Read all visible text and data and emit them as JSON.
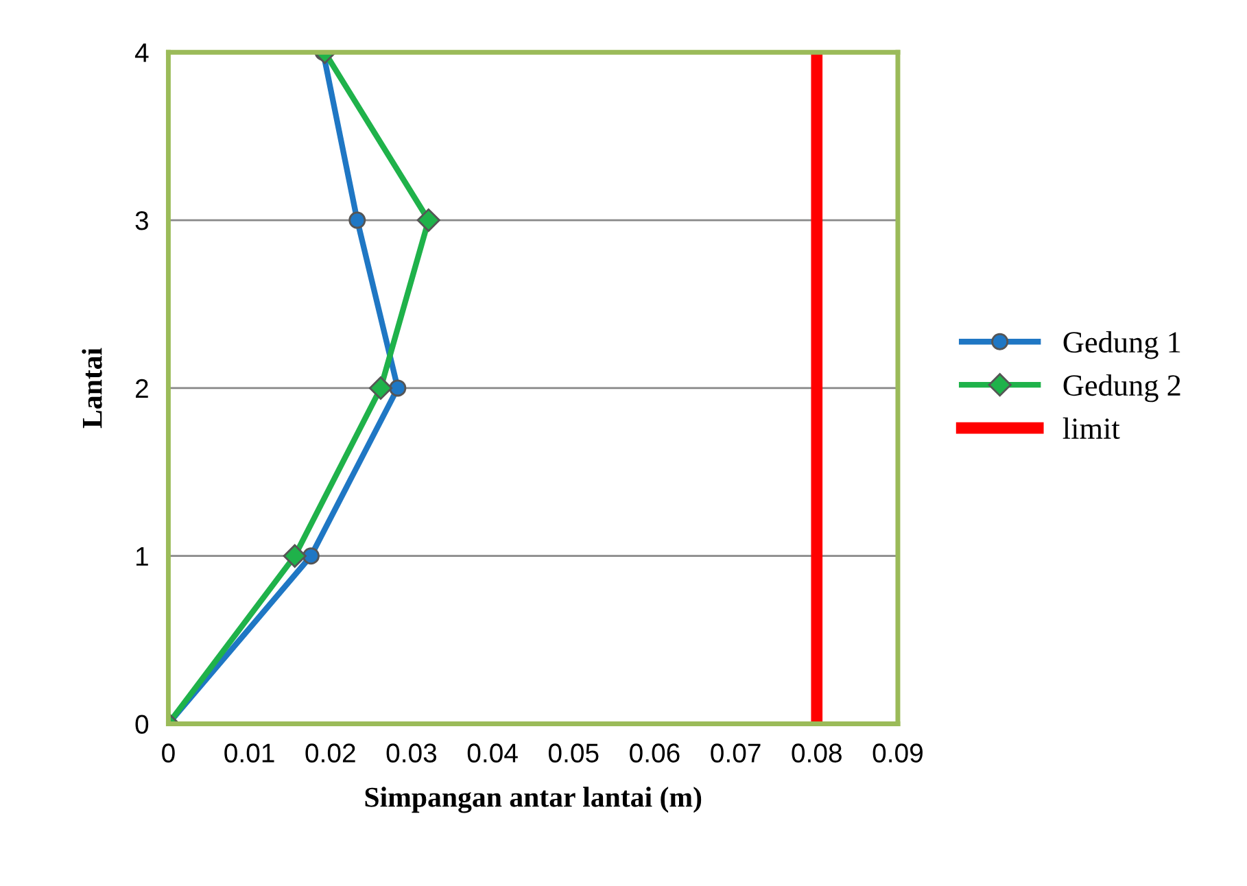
{
  "chart_data": {
    "type": "line",
    "xlabel": "Simpangan antar lantai (m)",
    "ylabel": "Lantai",
    "xlim": [
      0,
      0.09
    ],
    "xticks": [
      0,
      0.01,
      0.02,
      0.03,
      0.04,
      0.05,
      0.06,
      0.07,
      0.08,
      0.09
    ],
    "ylim": [
      0,
      4
    ],
    "yticks": [
      0,
      1,
      2,
      3,
      4
    ],
    "grid": "y",
    "legend": "right",
    "series": [
      {
        "name": "Gedung 1",
        "color": "#1f77c4",
        "marker": "circle",
        "x": [
          0,
          0.0176,
          0.0283,
          0.0233,
          0.0191
        ],
        "values": [
          0,
          1,
          2,
          3,
          4
        ]
      },
      {
        "name": "Gedung 2",
        "color": "#1fb24a",
        "marker": "diamond",
        "x": [
          0,
          0.0156,
          0.0262,
          0.0321,
          0.0193
        ],
        "values": [
          0,
          1,
          2,
          3,
          4
        ]
      },
      {
        "name": "limit",
        "color": "#ff0000",
        "marker": "none",
        "x": [
          0.08,
          0.08
        ],
        "values": [
          0,
          4
        ]
      }
    ]
  }
}
